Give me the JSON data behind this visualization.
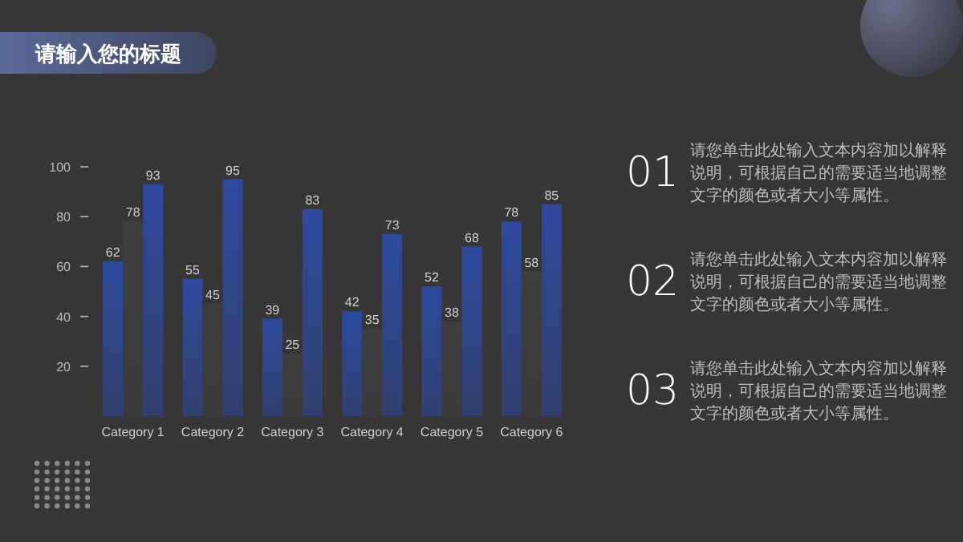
{
  "chart_data": {
    "type": "bar",
    "title": "请输入您的标题",
    "categories": [
      "Category 1",
      "Category 2",
      "Category 3",
      "Category 4",
      "Category 5",
      "Category 6"
    ],
    "series": [
      {
        "color": "#2c4a9e",
        "values": [
          62,
          55,
          39,
          42,
          52,
          78
        ]
      },
      {
        "color": "#3f3e3f",
        "values": [
          78,
          45,
          25,
          35,
          38,
          58
        ]
      },
      {
        "color": "#2c4a9e",
        "values": [
          93,
          95,
          83,
          73,
          68,
          85
        ]
      }
    ],
    "ylim": [
      0,
      100
    ],
    "yticks": [
      20,
      40,
      60,
      80,
      100
    ],
    "data_labels": true,
    "grid": false,
    "annotations": [
      "01",
      "请您单击此处输入文本内容加以解释说明，可根据自己的需要适当地调整文字的颜色或者大小等属性。",
      "02",
      "请您单击此处输入文本内容加以解释说明，可根据自己的需要适当地调整文字的颜色或者大小等属性。",
      "03",
      "请您单击此处输入文本内容加以解释说明，可根据自己的需要适当地调整文字的颜色或者大小等属性。"
    ]
  }
}
